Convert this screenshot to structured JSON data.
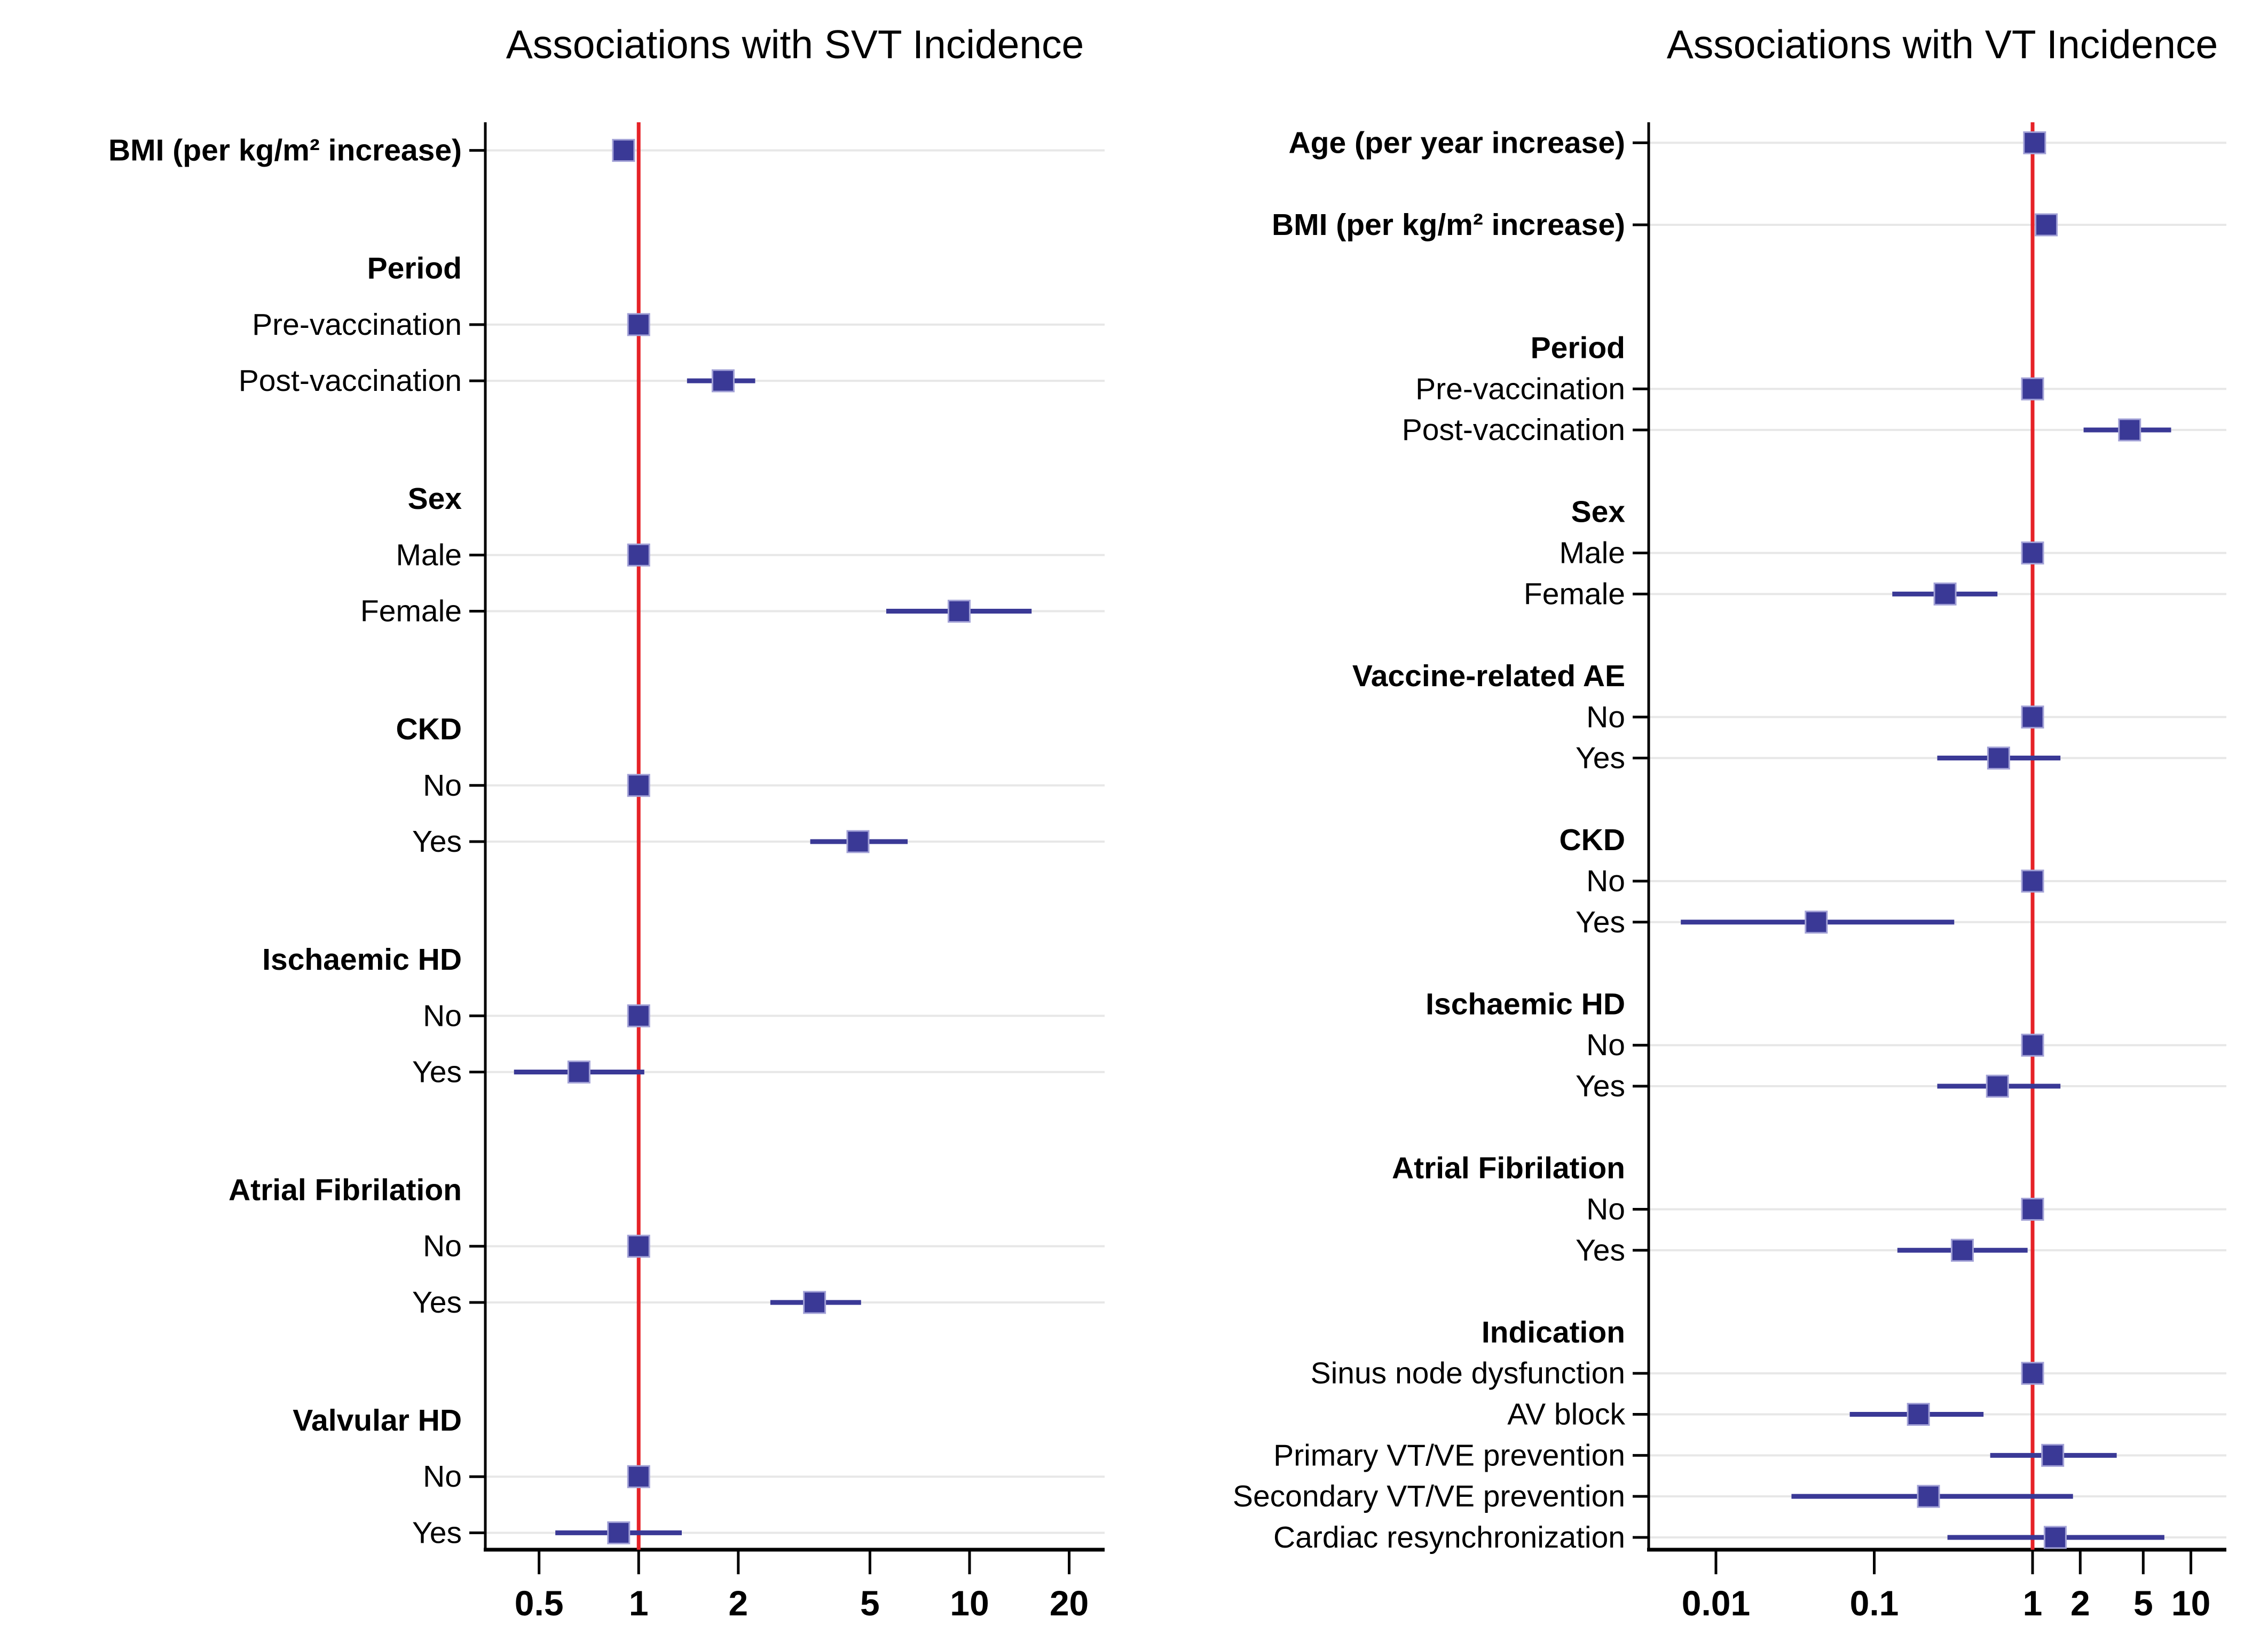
{
  "page": {
    "background": "#ffffff"
  },
  "colors": {
    "marker_fill": "#3a3996",
    "marker_edge": "#a2a1d6",
    "ci_line": "#3a3996",
    "ref_line_color": "#e62227",
    "gridline": "#e7e7e7",
    "axis": "#000000",
    "text": "#000000"
  },
  "chart_data": [
    {
      "type": "scatter",
      "subtype": "forest",
      "title": "Associations with SVT Incidence",
      "xlabel": "",
      "ylabel": "",
      "x_scale": "log",
      "xlim": [
        0.344,
        25.6
      ],
      "ref_line_x": 1,
      "grid": "horizontal-light",
      "legend": "none",
      "x_ticks": [
        {
          "v": 0.5,
          "label": "0.5"
        },
        {
          "v": 1,
          "label": "1"
        },
        {
          "v": 2,
          "label": "2"
        },
        {
          "v": 5,
          "label": "5"
        },
        {
          "v": 10,
          "label": "10"
        },
        {
          "v": 20,
          "label": "20"
        }
      ],
      "rows": [
        {
          "label": "BMI (per kg/m² increase)",
          "style": "bold",
          "gap_before": 0.5,
          "estimate": 0.9,
          "ci_low": 0.86,
          "ci_high": 0.95
        },
        {
          "label": "Period",
          "type": "header",
          "gap_before": 2.1
        },
        {
          "label": "Pre-vaccination",
          "estimate": 1.0,
          "ref": true
        },
        {
          "label": "Post-vaccination",
          "estimate": 1.8,
          "ci_low": 1.4,
          "ci_high": 2.25
        },
        {
          "label": "Sex",
          "type": "header",
          "gap_before": 2.1
        },
        {
          "label": "Male",
          "estimate": 1.0,
          "ref": true
        },
        {
          "label": "Female",
          "estimate": 9.3,
          "ci_low": 5.6,
          "ci_high": 15.4
        },
        {
          "label": "CKD",
          "type": "header",
          "gap_before": 2.1
        },
        {
          "label": "No",
          "estimate": 1.0,
          "ref": true
        },
        {
          "label": "Yes",
          "estimate": 4.6,
          "ci_low": 3.3,
          "ci_high": 6.5
        },
        {
          "label": "Ischaemic HD",
          "type": "header",
          "gap_before": 2.1
        },
        {
          "label": "No",
          "estimate": 1.0,
          "ref": true
        },
        {
          "label": "Yes",
          "estimate": 0.66,
          "ci_low": 0.42,
          "ci_high": 1.04
        },
        {
          "label": "Atrial Fibrilation",
          "type": "header",
          "gap_before": 2.1
        },
        {
          "label": "No",
          "estimate": 1.0,
          "ref": true
        },
        {
          "label": "Yes",
          "estimate": 3.4,
          "ci_low": 2.5,
          "ci_high": 4.7
        },
        {
          "label": "Valvular HD",
          "type": "header",
          "gap_before": 2.1
        },
        {
          "label": "No",
          "estimate": 1.0,
          "ref": true
        },
        {
          "label": "Yes",
          "estimate": 0.87,
          "ci_low": 0.56,
          "ci_high": 1.35
        }
      ]
    },
    {
      "type": "scatter",
      "subtype": "forest",
      "title": "Associations with VT Incidence",
      "xlabel": "",
      "ylabel": "",
      "x_scale": "log",
      "xlim": [
        0.00376,
        16.75
      ],
      "ref_line_x": 1,
      "grid": "horizontal-light",
      "legend": "none",
      "x_ticks": [
        {
          "v": 0.01,
          "label": "0.01"
        },
        {
          "v": 0.1,
          "label": "0.1"
        },
        {
          "v": 1,
          "label": "1"
        },
        {
          "v": 2,
          "label": "2"
        },
        {
          "v": 5,
          "label": "5"
        },
        {
          "v": 10,
          "label": "10"
        }
      ],
      "rows": [
        {
          "label": "Age (per year increase)",
          "style": "bold",
          "gap_before": 0.5,
          "estimate": 1.03,
          "ci_low": 1.0,
          "ci_high": 1.06
        },
        {
          "label": "BMI (per kg/m² increase)",
          "style": "bold",
          "gap_before": 2.0,
          "estimate": 1.22,
          "ci_low": 1.13,
          "ci_high": 1.33
        },
        {
          "label": "Period",
          "type": "header",
          "gap_before": 3.0
        },
        {
          "label": "Pre-vaccination",
          "estimate": 1.0,
          "ref": true
        },
        {
          "label": "Post-vaccination",
          "estimate": 4.1,
          "ci_low": 2.1,
          "ci_high": 7.5
        },
        {
          "label": "Sex",
          "type": "header",
          "gap_before": 2.0
        },
        {
          "label": "Male",
          "estimate": 1.0,
          "ref": true
        },
        {
          "label": "Female",
          "estimate": 0.28,
          "ci_low": 0.13,
          "ci_high": 0.6
        },
        {
          "label": "Vaccine-related AE",
          "type": "header",
          "gap_before": 2.0
        },
        {
          "label": "No",
          "estimate": 1.0,
          "ref": true
        },
        {
          "label": "Yes",
          "estimate": 0.61,
          "ci_low": 0.25,
          "ci_high": 1.5
        },
        {
          "label": "CKD",
          "type": "header",
          "gap_before": 2.0
        },
        {
          "label": "No",
          "estimate": 1.0,
          "ref": true
        },
        {
          "label": "Yes",
          "estimate": 0.043,
          "ci_low": 0.006,
          "ci_high": 0.32
        },
        {
          "label": "Ischaemic HD",
          "type": "header",
          "gap_before": 2.0
        },
        {
          "label": "No",
          "estimate": 1.0,
          "ref": true
        },
        {
          "label": "Yes",
          "estimate": 0.6,
          "ci_low": 0.25,
          "ci_high": 1.5
        },
        {
          "label": "Atrial Fibrilation",
          "type": "header",
          "gap_before": 2.0
        },
        {
          "label": "No",
          "estimate": 1.0,
          "ref": true
        },
        {
          "label": "Yes",
          "estimate": 0.36,
          "ci_low": 0.14,
          "ci_high": 0.93
        },
        {
          "label": "Indication",
          "type": "header",
          "gap_before": 2.0
        },
        {
          "label": "Sinus node dysfunction",
          "estimate": 1.0,
          "ref": true
        },
        {
          "label": "AV block",
          "estimate": 0.19,
          "ci_low": 0.07,
          "ci_high": 0.49
        },
        {
          "label": "Primary VT/VE prevention",
          "estimate": 1.34,
          "ci_low": 0.54,
          "ci_high": 3.4
        },
        {
          "label": "Secondary VT/VE prevention",
          "estimate": 0.22,
          "ci_low": 0.03,
          "ci_high": 1.8
        },
        {
          "label": "Cardiac resynchronization",
          "estimate": 1.39,
          "ci_low": 0.29,
          "ci_high": 6.8
        }
      ]
    }
  ]
}
